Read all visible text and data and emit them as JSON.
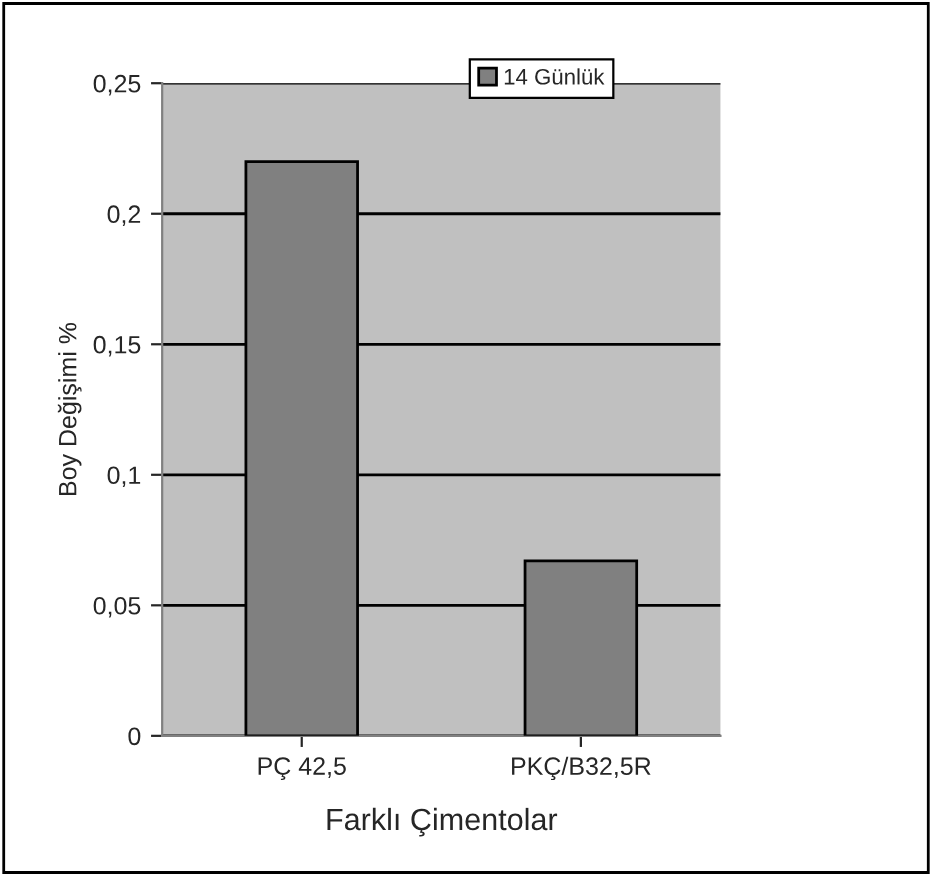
{
  "chart_data": {
    "type": "bar",
    "xlabel": "Farklı Çimentolar",
    "ylabel": "Boy Değişimi %",
    "categories": [
      "PÇ 42,5",
      "PKÇ/B32,5R"
    ],
    "series": [
      {
        "name": "14 Günlük",
        "color": "#808080",
        "values": [
          0.22,
          0.067
        ]
      }
    ],
    "ylim": [
      0,
      0.25
    ],
    "yticks": [
      0,
      {
        "value": 0.05,
        "label": "0,05"
      },
      {
        "value": 0.1,
        "label": "0,1"
      },
      {
        "value": 0.15,
        "label": "0,15"
      },
      {
        "value": 0.2,
        "label": "0,2"
      },
      {
        "value": 0.25,
        "label": "0,25"
      }
    ],
    "grid": "y",
    "legend": "top right"
  }
}
